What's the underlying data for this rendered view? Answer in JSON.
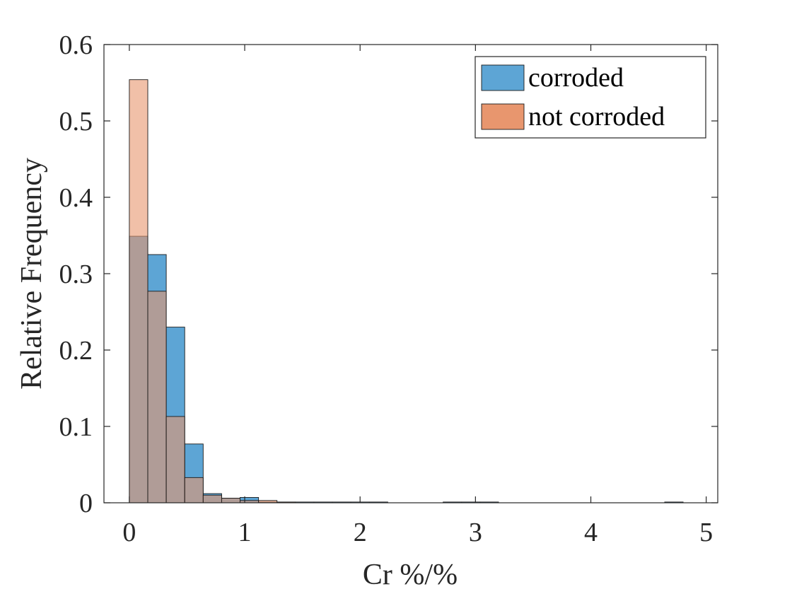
{
  "chart_data": {
    "type": "bar",
    "title": "",
    "xlabel": "Cr %/%",
    "ylabel": "Relative Frequency",
    "xlim": [
      -0.22,
      5.1
    ],
    "ylim": [
      0,
      0.6
    ],
    "xticks": [
      0,
      1,
      2,
      3,
      4,
      5
    ],
    "xtick_labels": [
      "0",
      "1",
      "2",
      "3",
      "4",
      "5"
    ],
    "yticks": [
      0,
      0.1,
      0.2,
      0.3,
      0.4,
      0.5,
      0.6
    ],
    "ytick_labels": [
      "0",
      "0.1",
      "0.2",
      "0.3",
      "0.4",
      "0.5",
      "0.6"
    ],
    "bin_width": 0.16,
    "grid": false,
    "legend_position": "top-right",
    "series": [
      {
        "name": "corroded",
        "color": "#5DA5D5",
        "bin_starts": [
          0,
          0.16,
          0.32,
          0.48,
          0.64,
          0.8,
          0.96,
          1.12,
          1.28,
          1.44,
          1.6,
          1.76,
          1.92,
          2.08,
          2.72,
          2.88,
          3.04,
          4.64
        ],
        "values": [
          0.349,
          0.325,
          0.23,
          0.077,
          0.012,
          0.006,
          0.007,
          0.001,
          0.001,
          0.001,
          0.001,
          0.001,
          0.001,
          0.001,
          0.001,
          0.001,
          0.001,
          0.001
        ]
      },
      {
        "name": "not corroded",
        "color": "#E8966E",
        "bin_starts": [
          0,
          0.16,
          0.32,
          0.48,
          0.64,
          0.8,
          0.96,
          1.12,
          1.28
        ],
        "values": [
          0.554,
          0.277,
          0.113,
          0.033,
          0.01,
          0.006,
          0.003,
          0.003,
          0.001
        ]
      }
    ]
  }
}
